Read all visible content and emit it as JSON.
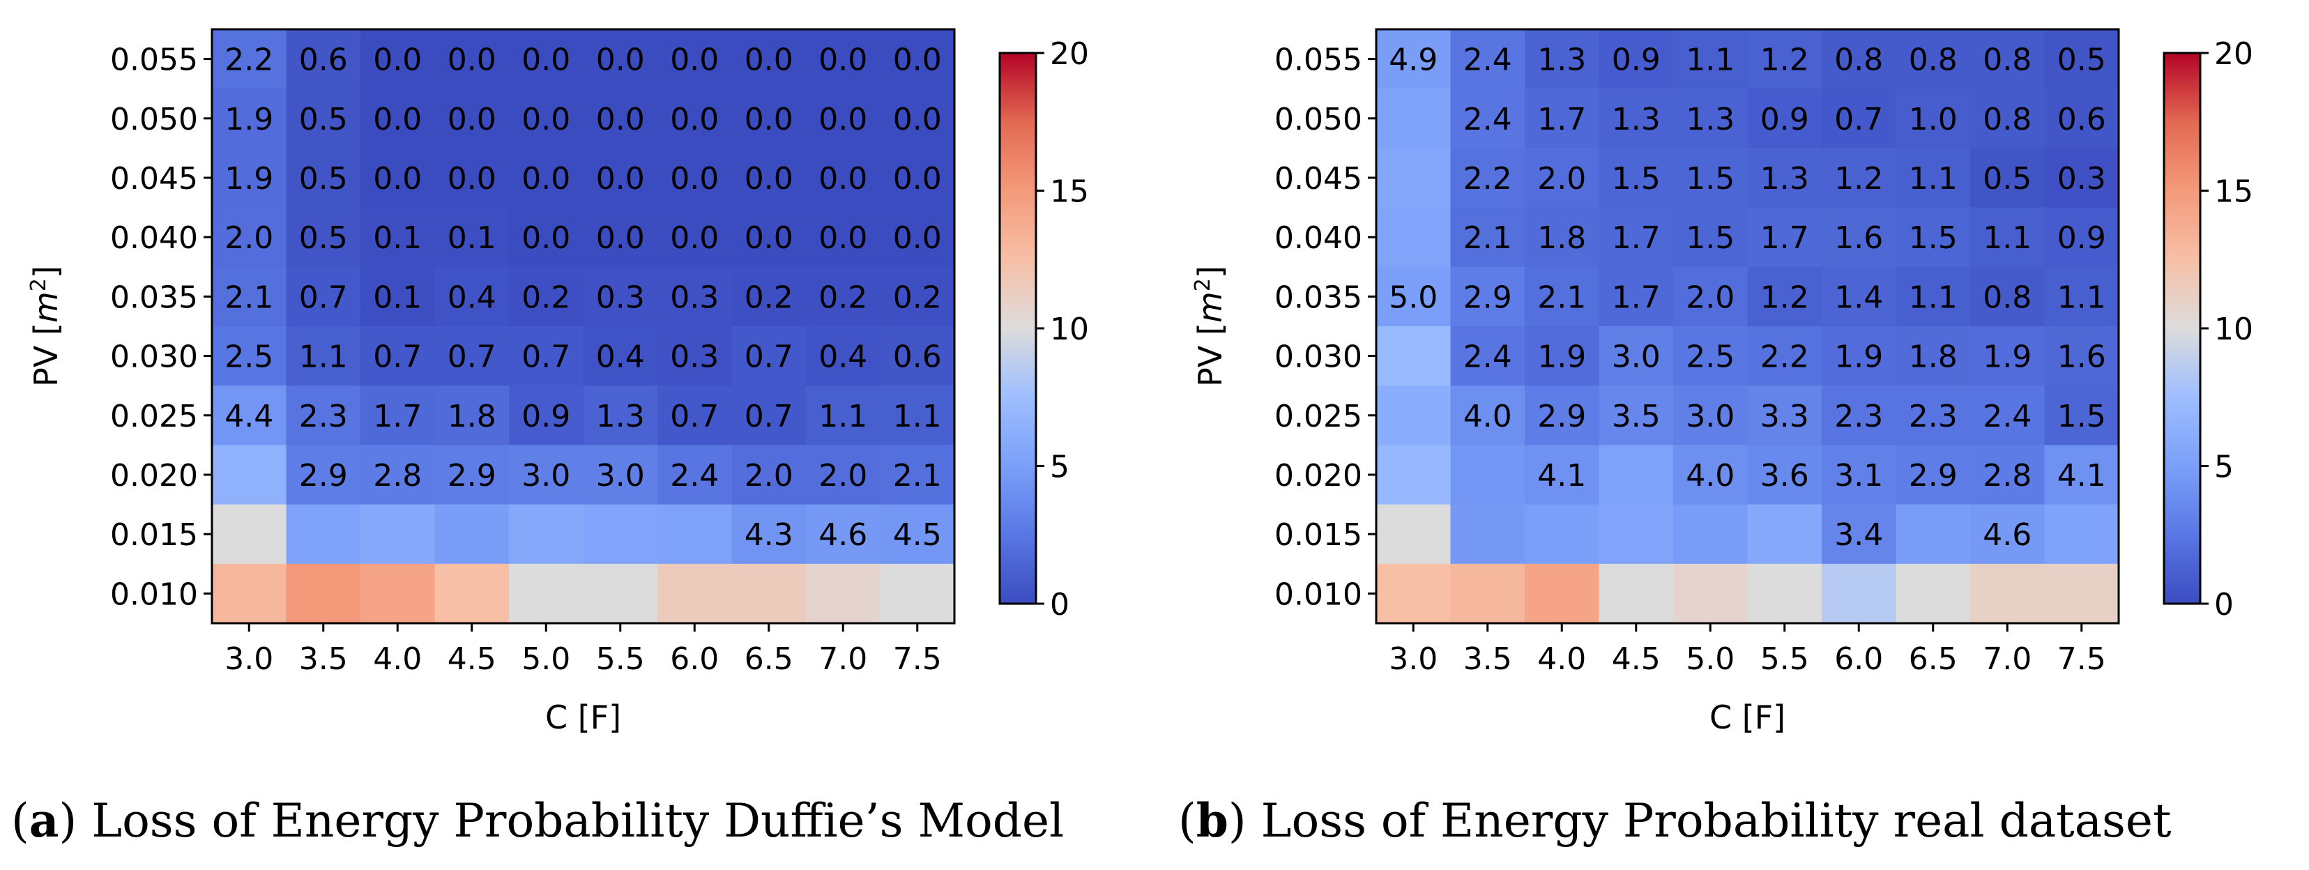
{
  "chart_data": [
    {
      "type": "heatmap",
      "xlabel": "C [F]",
      "ylabel": "PV [m^2]",
      "x": [
        "3.0",
        "3.5",
        "4.0",
        "4.5",
        "5.0",
        "5.5",
        "6.0",
        "6.5",
        "7.0",
        "7.5"
      ],
      "y": [
        "0.055",
        "0.050",
        "0.045",
        "0.040",
        "0.035",
        "0.030",
        "0.025",
        "0.020",
        "0.015",
        "0.010"
      ],
      "colorbar": {
        "min": 0,
        "max": 20,
        "ticks": [
          "0",
          "5",
          "10",
          "15",
          "20"
        ],
        "colormap": "coolwarm"
      },
      "values": [
        [
          2.2,
          0.6,
          0.0,
          0.0,
          0.0,
          0.0,
          0.0,
          0.0,
          0.0,
          0.0
        ],
        [
          1.9,
          0.5,
          0.0,
          0.0,
          0.0,
          0.0,
          0.0,
          0.0,
          0.0,
          0.0
        ],
        [
          1.9,
          0.5,
          0.0,
          0.0,
          0.0,
          0.0,
          0.0,
          0.0,
          0.0,
          0.0
        ],
        [
          2.0,
          0.5,
          0.1,
          0.1,
          0.0,
          0.0,
          0.0,
          0.0,
          0.0,
          0.0
        ],
        [
          2.1,
          0.7,
          0.1,
          0.4,
          0.2,
          0.3,
          0.3,
          0.2,
          0.2,
          0.2
        ],
        [
          2.5,
          1.1,
          0.7,
          0.7,
          0.7,
          0.4,
          0.3,
          0.7,
          0.4,
          0.6
        ],
        [
          4.4,
          2.3,
          1.7,
          1.8,
          0.9,
          1.3,
          0.7,
          0.7,
          1.1,
          1.1
        ],
        [
          6.5,
          2.9,
          2.8,
          2.9,
          3.0,
          3.0,
          2.4,
          2.0,
          2.0,
          2.1
        ],
        [
          10.0,
          5.3,
          5.8,
          4.9,
          5.7,
          5.4,
          5.2,
          4.3,
          4.6,
          4.5
        ],
        [
          13.0,
          15.0,
          14.3,
          12.5,
          10.0,
          10.0,
          11.5,
          11.5,
          10.7,
          10.0
        ]
      ],
      "labels": [
        [
          "2.2",
          "0.6",
          "0.0",
          "0.0",
          "0.0",
          "0.0",
          "0.0",
          "0.0",
          "0.0",
          "0.0"
        ],
        [
          "1.9",
          "0.5",
          "0.0",
          "0.0",
          "0.0",
          "0.0",
          "0.0",
          "0.0",
          "0.0",
          "0.0"
        ],
        [
          "1.9",
          "0.5",
          "0.0",
          "0.0",
          "0.0",
          "0.0",
          "0.0",
          "0.0",
          "0.0",
          "0.0"
        ],
        [
          "2.0",
          "0.5",
          "0.1",
          "0.1",
          "0.0",
          "0.0",
          "0.0",
          "0.0",
          "0.0",
          "0.0"
        ],
        [
          "2.1",
          "0.7",
          "0.1",
          "0.4",
          "0.2",
          "0.3",
          "0.3",
          "0.2",
          "0.2",
          "0.2"
        ],
        [
          "2.5",
          "1.1",
          "0.7",
          "0.7",
          "0.7",
          "0.4",
          "0.3",
          "0.7",
          "0.4",
          "0.6"
        ],
        [
          "4.4",
          "2.3",
          "1.7",
          "1.8",
          "0.9",
          "1.3",
          "0.7",
          "0.7",
          "1.1",
          "1.1"
        ],
        [
          "",
          "2.9",
          "2.8",
          "2.9",
          "3.0",
          "3.0",
          "2.4",
          "2.0",
          "2.0",
          "2.1"
        ],
        [
          "",
          "",
          "",
          "",
          "",
          "",
          "",
          "4.3",
          "4.6",
          "4.5"
        ],
        [
          "",
          "",
          "",
          "",
          "",
          "",
          "",
          "",
          "",
          ""
        ]
      ]
    },
    {
      "type": "heatmap",
      "xlabel": "C [F]",
      "ylabel": "PV [m^2]",
      "x": [
        "3.0",
        "3.5",
        "4.0",
        "4.5",
        "5.0",
        "5.5",
        "6.0",
        "6.5",
        "7.0",
        "7.5"
      ],
      "y": [
        "0.055",
        "0.050",
        "0.045",
        "0.040",
        "0.035",
        "0.030",
        "0.025",
        "0.020",
        "0.015",
        "0.010"
      ],
      "colorbar": {
        "min": 0,
        "max": 20,
        "ticks": [
          "0",
          "5",
          "10",
          "15",
          "20"
        ],
        "colormap": "coolwarm"
      },
      "values": [
        [
          4.9,
          2.4,
          1.3,
          0.9,
          1.1,
          1.2,
          0.8,
          0.8,
          0.8,
          0.5
        ],
        [
          5.3,
          2.4,
          1.7,
          1.3,
          1.3,
          0.9,
          0.7,
          1.0,
          0.8,
          0.6
        ],
        [
          5.6,
          2.2,
          2.0,
          1.5,
          1.5,
          1.3,
          1.2,
          1.1,
          0.5,
          0.3
        ],
        [
          5.4,
          2.1,
          1.8,
          1.7,
          1.5,
          1.7,
          1.6,
          1.5,
          1.1,
          0.9
        ],
        [
          5.0,
          2.9,
          2.1,
          1.7,
          2.0,
          1.2,
          1.4,
          1.1,
          0.8,
          1.1
        ],
        [
          7.2,
          2.4,
          1.9,
          3.0,
          2.5,
          2.2,
          1.9,
          1.8,
          1.9,
          1.6
        ],
        [
          6.1,
          4.0,
          2.9,
          3.5,
          3.0,
          3.3,
          2.3,
          2.3,
          2.4,
          1.5
        ],
        [
          7.0,
          4.5,
          4.1,
          5.2,
          4.0,
          3.6,
          3.1,
          2.9,
          2.8,
          4.1
        ],
        [
          10.0,
          4.6,
          5.0,
          5.4,
          4.8,
          5.8,
          3.4,
          4.8,
          4.6,
          5.3
        ],
        [
          12.5,
          13.0,
          14.3,
          10.0,
          10.7,
          10.0,
          8.5,
          10.0,
          11.0,
          11.0
        ]
      ],
      "labels": [
        [
          "4.9",
          "2.4",
          "1.3",
          "0.9",
          "1.1",
          "1.2",
          "0.8",
          "0.8",
          "0.8",
          "0.5"
        ],
        [
          "",
          "2.4",
          "1.7",
          "1.3",
          "1.3",
          "0.9",
          "0.7",
          "1.0",
          "0.8",
          "0.6"
        ],
        [
          "",
          "2.2",
          "2.0",
          "1.5",
          "1.5",
          "1.3",
          "1.2",
          "1.1",
          "0.5",
          "0.3"
        ],
        [
          "",
          "2.1",
          "1.8",
          "1.7",
          "1.5",
          "1.7",
          "1.6",
          "1.5",
          "1.1",
          "0.9"
        ],
        [
          "5.0",
          "2.9",
          "2.1",
          "1.7",
          "2.0",
          "1.2",
          "1.4",
          "1.1",
          "0.8",
          "1.1"
        ],
        [
          "",
          "2.4",
          "1.9",
          "3.0",
          "2.5",
          "2.2",
          "1.9",
          "1.8",
          "1.9",
          "1.6"
        ],
        [
          "",
          "4.0",
          "2.9",
          "3.5",
          "3.0",
          "3.3",
          "2.3",
          "2.3",
          "2.4",
          "1.5"
        ],
        [
          "",
          "",
          "4.1",
          "",
          "4.0",
          "3.6",
          "3.1",
          "2.9",
          "2.8",
          "4.1"
        ],
        [
          "",
          "",
          "",
          "",
          "",
          "",
          "3.4",
          "",
          "4.6",
          ""
        ],
        [
          "",
          "",
          "",
          "",
          "",
          "",
          "",
          "",
          "",
          ""
        ]
      ]
    }
  ],
  "captions": [
    {
      "letter": "a",
      "text": " Loss of Energy Probability Duffie’s Model"
    },
    {
      "letter": "b",
      "text": " Loss of Energy Probability real dataset"
    }
  ]
}
